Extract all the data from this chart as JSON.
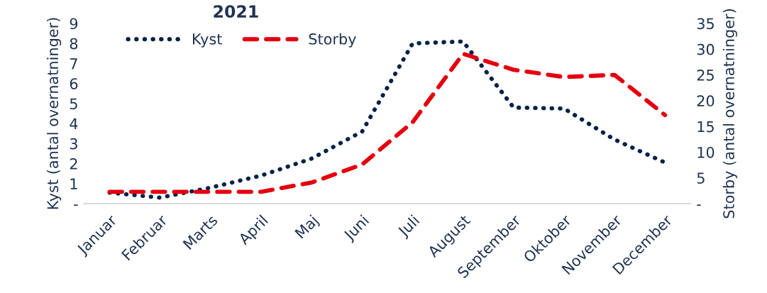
{
  "chart_data": {
    "type": "line",
    "title": "2021",
    "ylabel": "Kyst (antal overnatninger)",
    "y2label": "Storby (antal overnatninger)",
    "categories": [
      "Januar",
      "Februar",
      "Marts",
      "April",
      "Maj",
      "Juni",
      "Juli",
      "August",
      "September",
      "Oktober",
      "November",
      "December"
    ],
    "series": [
      {
        "name": "Kyst",
        "color": "#002147",
        "line_style": "dotted",
        "values": [
          0.55,
          0.3,
          0.8,
          1.4,
          2.25,
          3.6,
          8.0,
          8.1,
          4.8,
          4.75,
          3.2,
          2.05
        ]
      },
      {
        "name": "Storby",
        "color": "#e3000f",
        "line_style": "dashed",
        "axis": "y2",
        "values": [
          2.3,
          2.3,
          2.3,
          2.3,
          4.1,
          7.6,
          15.8,
          29.1,
          26,
          24.6,
          25,
          17.2
        ]
      }
    ],
    "ylim": [
      0,
      9
    ],
    "yticks": [
      {
        "value": 0,
        "label": "-"
      },
      1,
      2,
      3,
      4,
      5,
      6,
      7,
      8,
      9
    ],
    "y2lim": [
      0,
      35
    ],
    "y2ticks": [
      {
        "value": 0,
        "label": "-"
      },
      5,
      10,
      15,
      20,
      25,
      30,
      35
    ],
    "grid": false,
    "legend": "top left",
    "marker": "none"
  }
}
